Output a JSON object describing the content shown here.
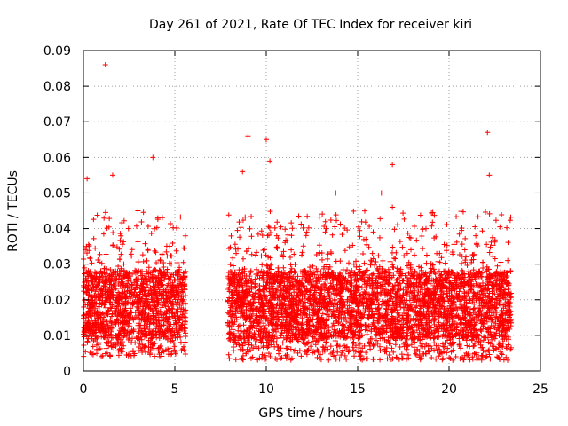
{
  "chart_data": {
    "type": "scatter",
    "title": "Day 261 of 2021, Rate Of TEC Index for receiver kiri",
    "xlabel": "GPS time / hours",
    "ylabel": "ROTI / TECUs",
    "xlim": [
      0,
      25
    ],
    "ylim": [
      0,
      0.09
    ],
    "x_ticks": [
      0,
      5,
      10,
      15,
      20,
      25
    ],
    "x_tick_labels": [
      "0",
      "5",
      "10",
      "15",
      "20",
      "25"
    ],
    "y_ticks": [
      0,
      0.01,
      0.02,
      0.03,
      0.04,
      0.05,
      0.06,
      0.07,
      0.08,
      0.09
    ],
    "y_tick_labels": [
      "0",
      "0.01",
      "0.02",
      "0.03",
      "0.04",
      "0.05",
      "0.06",
      "0.07",
      "0.08",
      "0.09"
    ],
    "grid": true,
    "marker": "+",
    "series": [
      {
        "name": "ROTI",
        "color": "#ff0000",
        "segments": [
          {
            "x_start": 0.0,
            "x_end": 5.6,
            "y_min": 0.004,
            "y_typical_low": 0.009,
            "y_typical_high": 0.028,
            "y_max_typical": 0.045
          },
          {
            "x_start": 7.9,
            "x_end": 23.4,
            "y_min": 0.003,
            "y_typical_low": 0.009,
            "y_typical_high": 0.028,
            "y_max_typical": 0.045
          }
        ],
        "notable_points": [
          {
            "x": 1.2,
            "y": 0.086
          },
          {
            "x": 22.1,
            "y": 0.067
          },
          {
            "x": 9.0,
            "y": 0.066
          },
          {
            "x": 10.0,
            "y": 0.065
          },
          {
            "x": 3.8,
            "y": 0.06
          },
          {
            "x": 10.2,
            "y": 0.059
          },
          {
            "x": 16.9,
            "y": 0.058
          },
          {
            "x": 1.6,
            "y": 0.055
          },
          {
            "x": 0.2,
            "y": 0.054
          },
          {
            "x": 22.2,
            "y": 0.055
          },
          {
            "x": 8.7,
            "y": 0.056
          },
          {
            "x": 16.3,
            "y": 0.05
          },
          {
            "x": 13.8,
            "y": 0.05
          },
          {
            "x": 16.9,
            "y": 0.046
          }
        ]
      }
    ]
  }
}
